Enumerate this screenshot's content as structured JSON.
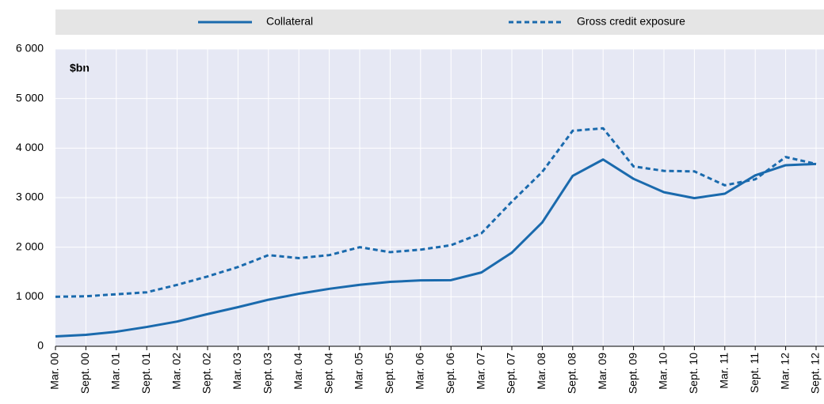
{
  "chart_data": {
    "type": "line",
    "annotation": "$bn",
    "categories": [
      "Mar. 00",
      "Sept. 00",
      "Mar. 01",
      "Sept. 01",
      "Mar. 02",
      "Sept. 02",
      "Mar. 03",
      "Sept. 03",
      "Mar. 04",
      "Sept. 04",
      "Mar. 05",
      "Sept. 05",
      "Mar. 06",
      "Sept. 06",
      "Mar. 07",
      "Sept. 07",
      "Mar. 08",
      "Sept. 08",
      "Mar. 09",
      "Sept. 09",
      "Mar. 10",
      "Sept. 10",
      "Mar. 11",
      "Sept. 11",
      "Mar. 12",
      "Sept. 12"
    ],
    "series": [
      {
        "name": "Collateral",
        "color": "#1a6aad",
        "dashed": false,
        "values": [
          200,
          232,
          294,
          390,
          500,
          650,
          790,
          940,
          1060,
          1160,
          1240,
          1300,
          1330,
          1335,
          1490,
          1890,
          2500,
          3440,
          3770,
          3380,
          3110,
          2990,
          3080,
          3450,
          3655,
          3680
        ]
      },
      {
        "name": "Gross credit exposure",
        "color": "#1a6aad",
        "dashed": true,
        "values": [
          1000,
          1010,
          1050,
          1090,
          1240,
          1410,
          1600,
          1840,
          1780,
          1840,
          2000,
          1900,
          1950,
          2040,
          2280,
          2920,
          3520,
          4350,
          4400,
          3630,
          3540,
          3530,
          3250,
          3370,
          3820,
          3680
        ]
      }
    ],
    "ylim": [
      0,
      6000
    ],
    "yticks": [
      0,
      {
        "value": 1000,
        "label": "1 000"
      },
      {
        "value": 2000,
        "label": "2 000"
      },
      {
        "value": 3000,
        "label": "3 000"
      },
      {
        "value": 4000,
        "label": "4 000"
      },
      {
        "value": 5000,
        "label": "5 000"
      },
      {
        "value": 6000,
        "label": "6 000"
      }
    ],
    "grid": true
  }
}
